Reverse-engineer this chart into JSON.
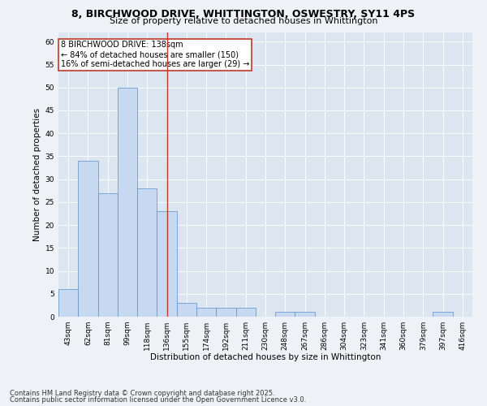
{
  "title_line1": "8, BIRCHWOOD DRIVE, WHITTINGTON, OSWESTRY, SY11 4PS",
  "title_line2": "Size of property relative to detached houses in Whittington",
  "xlabel": "Distribution of detached houses by size in Whittington",
  "ylabel": "Number of detached properties",
  "bin_labels": [
    "43sqm",
    "62sqm",
    "81sqm",
    "99sqm",
    "118sqm",
    "136sqm",
    "155sqm",
    "174sqm",
    "192sqm",
    "211sqm",
    "230sqm",
    "248sqm",
    "267sqm",
    "286sqm",
    "304sqm",
    "323sqm",
    "341sqm",
    "360sqm",
    "379sqm",
    "397sqm",
    "416sqm"
  ],
  "bar_values": [
    6,
    34,
    27,
    50,
    28,
    23,
    3,
    2,
    2,
    2,
    0,
    1,
    1,
    0,
    0,
    0,
    0,
    0,
    0,
    1,
    0
  ],
  "bar_color": "#c6d9f0",
  "bar_edge_color": "#5b8fc9",
  "property_line_index": 5,
  "property_line_color": "#c0392b",
  "annotation_text": "8 BIRCHWOOD DRIVE: 138sqm\n← 84% of detached houses are smaller (150)\n16% of semi-detached houses are larger (29) →",
  "annotation_box_color": "#ffffff",
  "annotation_box_edge": "#c0392b",
  "ylim": [
    0,
    62
  ],
  "yticks": [
    0,
    5,
    10,
    15,
    20,
    25,
    30,
    35,
    40,
    45,
    50,
    55,
    60
  ],
  "footer_line1": "Contains HM Land Registry data © Crown copyright and database right 2025.",
  "footer_line2": "Contains public sector information licensed under the Open Government Licence v3.0.",
  "fig_bg_color": "#eef2f7",
  "plot_bg_color": "#dce6f1",
  "title_fontsize": 9,
  "subtitle_fontsize": 8,
  "axis_label_fontsize": 7.5,
  "tick_fontsize": 6.5,
  "annotation_fontsize": 7,
  "footer_fontsize": 6
}
